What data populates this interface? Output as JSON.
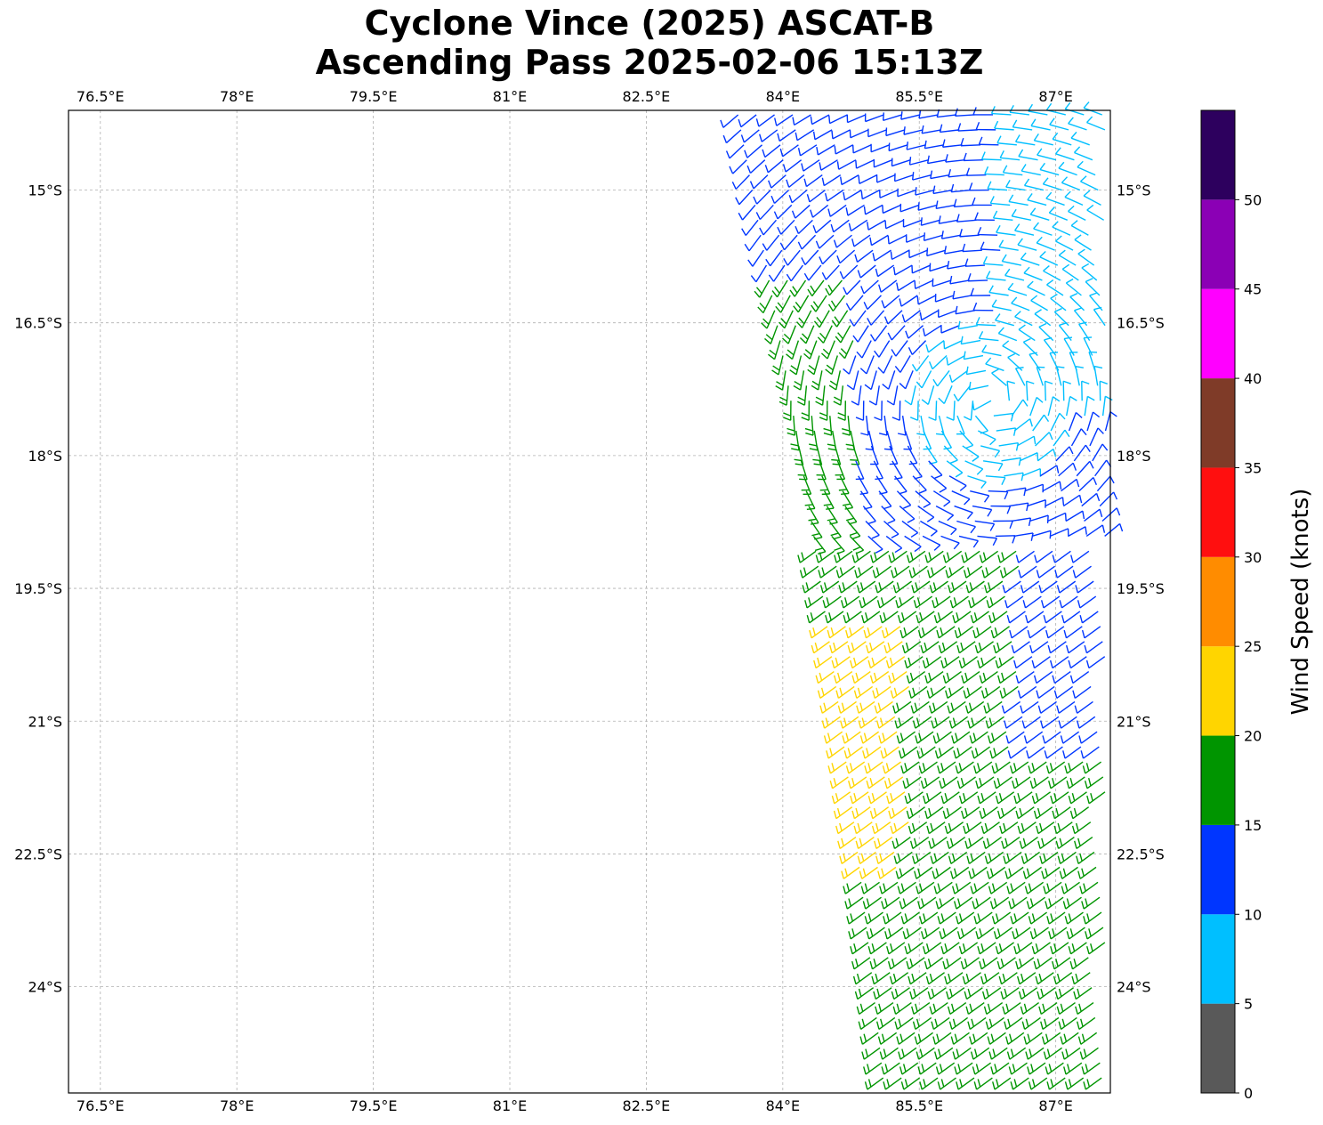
{
  "title": {
    "line1": "Cyclone Vince (2025) ASCAT-B",
    "line2": "Ascending Pass 2025-02-06 15:13Z"
  },
  "map": {
    "lon_range": [
      76.15,
      87.6
    ],
    "lat_range": [
      -25.2,
      -14.1
    ],
    "lon_ticks": [
      76.5,
      78,
      79.5,
      81,
      82.5,
      84,
      85.5,
      87
    ],
    "lon_tick_labels": [
      "76.5°E",
      "78°E",
      "79.5°E",
      "81°E",
      "82.5°E",
      "84°E",
      "85.5°E",
      "87°E"
    ],
    "lat_ticks": [
      -15,
      -16.5,
      -18,
      -19.5,
      -21,
      -22.5,
      -24
    ],
    "lat_tick_labels": [
      "15°S",
      "16.5°S",
      "18°S",
      "19.5°S",
      "21°S",
      "22.5°S",
      "24°S"
    ],
    "gridlines": true
  },
  "colorbar": {
    "label": "Wind Speed (knots)",
    "range": [
      0,
      55
    ],
    "ticks": [
      0,
      5,
      10,
      15,
      20,
      25,
      30,
      35,
      40,
      45,
      50
    ],
    "tick_labels": [
      "0",
      "5",
      "10",
      "15",
      "20",
      "25",
      "30",
      "35",
      "40",
      "45",
      "50"
    ],
    "colors": [
      "#595959",
      "#00bfff",
      "#0036ff",
      "#009500",
      "#ffd500",
      "#ff8c00",
      "#ff0f0f",
      "#7f3b28",
      "#ff00ff",
      "#8b00b5",
      "#2d005e"
    ]
  },
  "wind_regions": [
    {
      "speed_band": "10-15",
      "color": "#0036ff",
      "area": "north-west arc"
    },
    {
      "speed_band": "5-10",
      "color": "#00bfff",
      "area": "north-east"
    },
    {
      "speed_band": "15-20",
      "color": "#009500",
      "area": "west arc and southern swath"
    },
    {
      "speed_band": "20-25",
      "color": "#ffd500",
      "area": "south-west patch"
    }
  ]
}
